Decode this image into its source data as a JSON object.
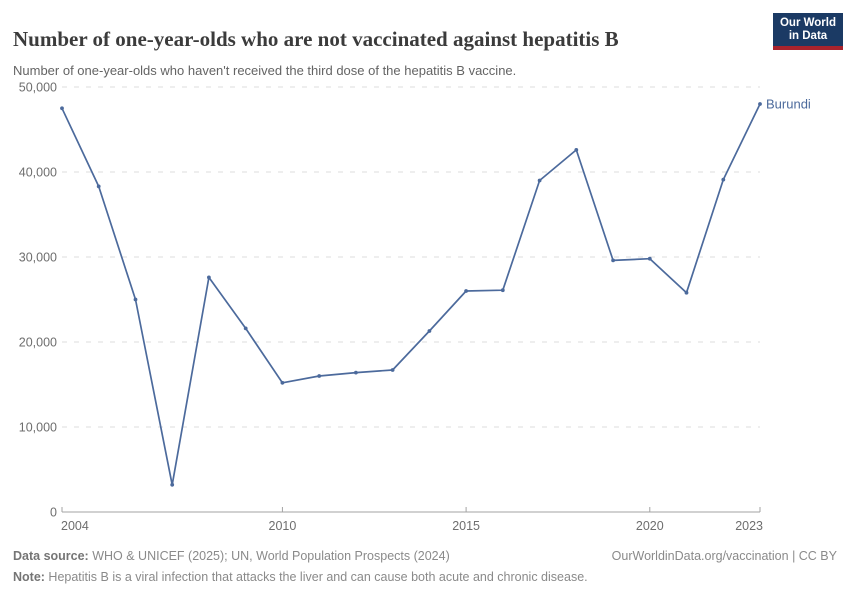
{
  "header": {
    "logo": {
      "line1": "Our World",
      "line2": "in Data"
    }
  },
  "colors": {
    "line": "#4C6A9C",
    "logo_bg": "#1b3a64",
    "logo_stripe": "#a8232d",
    "gridline": "#dedede",
    "axis": "#a3a3a3",
    "tick_label": "#6e6e6e"
  },
  "chart_data": {
    "type": "line",
    "title": "Number of one-year-olds who are not vaccinated against hepatitis B",
    "subtitle": "Number of one-year-olds who haven't received the third dose of the hepatitis B vaccine.",
    "xlabel": "",
    "ylabel": "",
    "xlim": [
      2004,
      2023
    ],
    "ylim": [
      0,
      50000
    ],
    "grid": "horizontal-dashed",
    "legend_position": "end-of-line",
    "x": [
      2004,
      2005,
      2006,
      2007,
      2008,
      2009,
      2010,
      2011,
      2012,
      2013,
      2014,
      2015,
      2016,
      2017,
      2018,
      2019,
      2020,
      2021,
      2022,
      2023
    ],
    "series": [
      {
        "name": "Burundi",
        "values": [
          47500,
          38300,
          25000,
          3200,
          27600,
          21600,
          15200,
          16000,
          16400,
          16700,
          21300,
          26000,
          26100,
          39000,
          42600,
          29600,
          29800,
          25800,
          39100,
          48000
        ]
      }
    ],
    "end_label": "Burundi",
    "y_ticks": [
      {
        "value": 0,
        "label": "0"
      },
      {
        "value": 10000,
        "label": "10,000"
      },
      {
        "value": 20000,
        "label": "20,000"
      },
      {
        "value": 30000,
        "label": "30,000"
      },
      {
        "value": 40000,
        "label": "40,000"
      },
      {
        "value": 50000,
        "label": "50,000"
      }
    ],
    "x_ticks": [
      {
        "value": 2004,
        "label": "2004"
      },
      {
        "value": 2010,
        "label": "2010"
      },
      {
        "value": 2015,
        "label": "2015"
      },
      {
        "value": 2020,
        "label": "2020"
      },
      {
        "value": 2023,
        "label": "2023"
      }
    ]
  },
  "footer": {
    "source_label": "Data source:",
    "source_text": " WHO & UNICEF (2025); UN, World Population Prospects (2024)",
    "link": "OurWorldinData.org/vaccination | CC BY",
    "note_label": "Note:",
    "note_text": " Hepatitis B is a viral infection that attacks the liver and can cause both acute and chronic disease."
  }
}
